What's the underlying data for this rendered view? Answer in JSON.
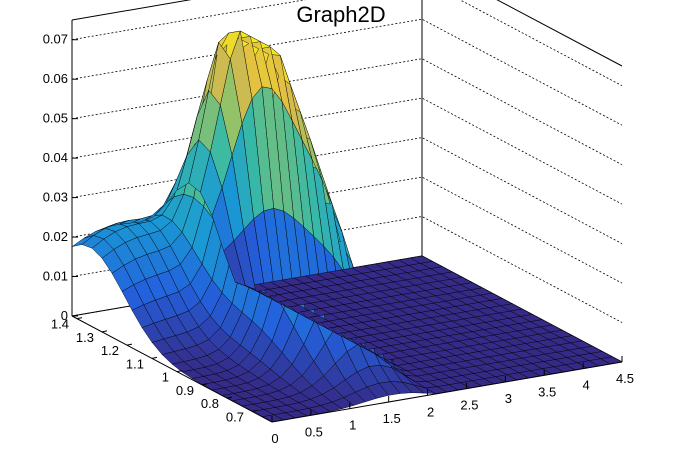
{
  "window": {
    "title": "Graph2D"
  },
  "chart_data": {
    "type": "surface",
    "title": "Graph2D",
    "xlabel": "",
    "ylabel": "",
    "zlabel": "",
    "x_range": [
      0,
      4.5
    ],
    "y_range": [
      0.62,
      1.42
    ],
    "z_range": [
      0,
      0.075
    ],
    "x_ticks": [
      "0",
      "0.5",
      "1",
      "1.5",
      "2",
      "2.5",
      "3",
      "3.5",
      "4",
      "4.5"
    ],
    "y_ticks": [
      "0.7",
      "0.8",
      "0.9",
      "1",
      "1.1",
      "1.2",
      "1.3",
      "1.4"
    ],
    "z_ticks": [
      "0",
      "0.01",
      "0.02",
      "0.03",
      "0.04",
      "0.05",
      "0.06",
      "0.07"
    ],
    "grid": true,
    "colormap": [
      "#352a87",
      "#2361dd",
      "#1a9ad4",
      "#38b9a6",
      "#96c266",
      "#e0b94a",
      "#f9fb0e"
    ],
    "grid_size": [
      30,
      20
    ],
    "surface_description": "Broad ridge peaking near x≈1.5, y≈1.2 at z≈0.068; plateau z≈0.048 near x≈1.6, y≈1.0; flat zero region for x>2.1"
  }
}
